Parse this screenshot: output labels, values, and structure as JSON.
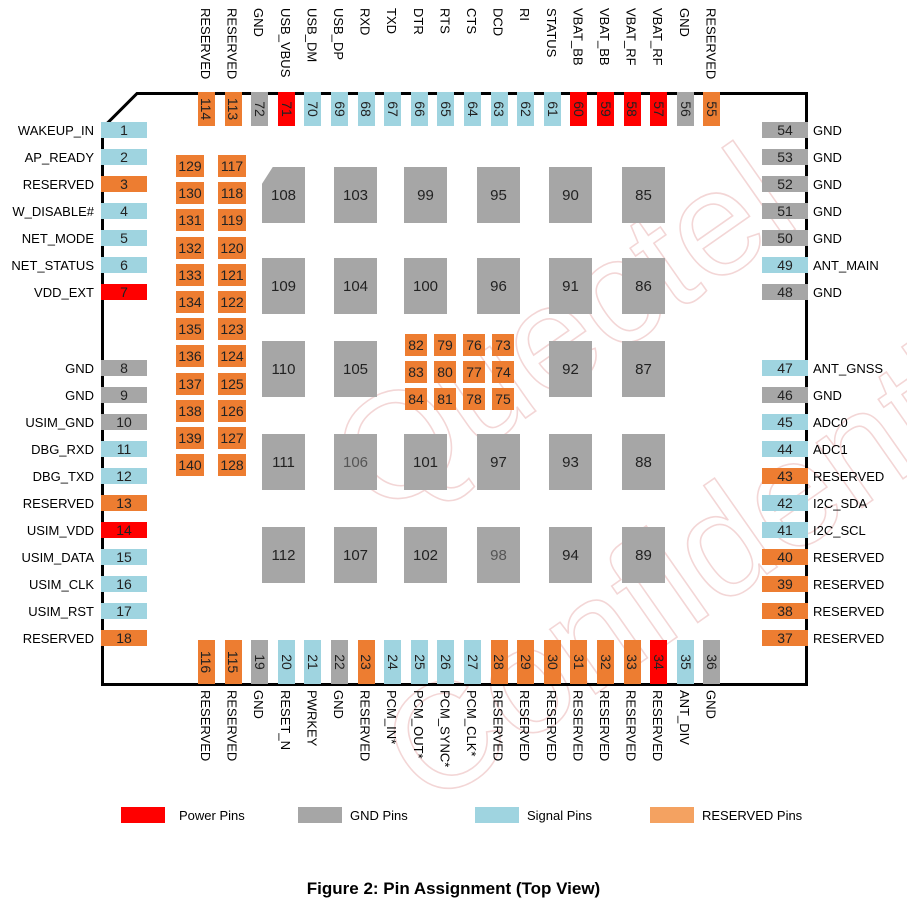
{
  "caption": "Figure 2: Pin Assignment (Top View)",
  "watermark": [
    "Quectel",
    "Confidential"
  ],
  "colors": {
    "power": "#ff0000",
    "gnd": "#a6a6a6",
    "signal": "#9fd4e0",
    "reserved": "#ed7d31",
    "legend_reserved": "#f4a261"
  },
  "legend": [
    {
      "label": "Power Pins",
      "type": "power"
    },
    {
      "label": "GND Pins",
      "type": "gnd"
    },
    {
      "label": "Signal Pins",
      "type": "signal"
    },
    {
      "label": "RESERVED Pins",
      "type": "reserved"
    }
  ],
  "pins_left": [
    {
      "num": "1",
      "label": "WAKEUP_IN",
      "type": "signal"
    },
    {
      "num": "2",
      "label": "AP_READY",
      "type": "signal"
    },
    {
      "num": "3",
      "label": "RESERVED",
      "type": "reserved"
    },
    {
      "num": "4",
      "label": "W_DISABLE#",
      "type": "signal"
    },
    {
      "num": "5",
      "label": "NET_MODE",
      "type": "signal"
    },
    {
      "num": "6",
      "label": "NET_STATUS",
      "type": "signal"
    },
    {
      "num": "7",
      "label": "VDD_EXT",
      "type": "power"
    },
    {
      "num": "8",
      "label": "GND",
      "type": "gnd"
    },
    {
      "num": "9",
      "label": "GND",
      "type": "gnd"
    },
    {
      "num": "10",
      "label": "USIM_GND",
      "type": "gnd"
    },
    {
      "num": "11",
      "label": "DBG_RXD",
      "type": "signal"
    },
    {
      "num": "12",
      "label": "DBG_TXD",
      "type": "signal"
    },
    {
      "num": "13",
      "label": "RESERVED",
      "type": "reserved"
    },
    {
      "num": "14",
      "label": "USIM_VDD",
      "type": "power"
    },
    {
      "num": "15",
      "label": "USIM_DATA",
      "type": "signal"
    },
    {
      "num": "16",
      "label": "USIM_CLK",
      "type": "signal"
    },
    {
      "num": "17",
      "label": "USIM_RST",
      "type": "signal"
    },
    {
      "num": "18",
      "label": "RESERVED",
      "type": "reserved"
    }
  ],
  "pins_right": [
    {
      "num": "54",
      "label": "GND",
      "type": "gnd"
    },
    {
      "num": "53",
      "label": "GND",
      "type": "gnd"
    },
    {
      "num": "52",
      "label": "GND",
      "type": "gnd"
    },
    {
      "num": "51",
      "label": "GND",
      "type": "gnd"
    },
    {
      "num": "50",
      "label": "GND",
      "type": "gnd"
    },
    {
      "num": "49",
      "label": "ANT_MAIN",
      "type": "signal"
    },
    {
      "num": "48",
      "label": "GND",
      "type": "gnd"
    },
    {
      "num": "47",
      "label": "ANT_GNSS",
      "type": "signal"
    },
    {
      "num": "46",
      "label": "GND",
      "type": "gnd"
    },
    {
      "num": "45",
      "label": "ADC0",
      "type": "signal"
    },
    {
      "num": "44",
      "label": "ADC1",
      "type": "signal"
    },
    {
      "num": "43",
      "label": "RESERVED",
      "type": "reserved"
    },
    {
      "num": "42",
      "label": "I2C_SDA",
      "type": "signal"
    },
    {
      "num": "41",
      "label": "I2C_SCL",
      "type": "signal"
    },
    {
      "num": "40",
      "label": "RESERVED",
      "type": "reserved"
    },
    {
      "num": "39",
      "label": "RESERVED",
      "type": "reserved"
    },
    {
      "num": "38",
      "label": "RESERVED",
      "type": "reserved"
    },
    {
      "num": "37",
      "label": "RESERVED",
      "type": "reserved"
    }
  ],
  "pins_top": [
    {
      "num": "114",
      "label": "RESERVED",
      "type": "reserved"
    },
    {
      "num": "113",
      "label": "RESERVED",
      "type": "reserved"
    },
    {
      "num": "72",
      "label": "GND",
      "type": "gnd"
    },
    {
      "num": "71",
      "label": "USB_VBUS",
      "type": "power"
    },
    {
      "num": "70",
      "label": "USB_DM",
      "type": "signal"
    },
    {
      "num": "69",
      "label": "USB_DP",
      "type": "signal"
    },
    {
      "num": "68",
      "label": "RXD",
      "type": "signal"
    },
    {
      "num": "67",
      "label": "TXD",
      "type": "signal"
    },
    {
      "num": "66",
      "label": "DTR",
      "type": "signal"
    },
    {
      "num": "65",
      "label": "RTS",
      "type": "signal"
    },
    {
      "num": "64",
      "label": "CTS",
      "type": "signal"
    },
    {
      "num": "63",
      "label": "DCD",
      "type": "signal"
    },
    {
      "num": "62",
      "label": "RI",
      "type": "signal"
    },
    {
      "num": "61",
      "label": "STATUS",
      "type": "signal"
    },
    {
      "num": "60",
      "label": "VBAT_BB",
      "type": "power"
    },
    {
      "num": "59",
      "label": "VBAT_BB",
      "type": "power"
    },
    {
      "num": "58",
      "label": "VBAT_RF",
      "type": "power"
    },
    {
      "num": "57",
      "label": "VBAT_RF",
      "type": "power"
    },
    {
      "num": "56",
      "label": "GND",
      "type": "gnd"
    },
    {
      "num": "55",
      "label": "RESERVED",
      "type": "reserved"
    }
  ],
  "pins_bottom": [
    {
      "num": "116",
      "label": "RESERVED",
      "type": "reserved"
    },
    {
      "num": "115",
      "label": "RESERVED",
      "type": "reserved"
    },
    {
      "num": "19",
      "label": "GND",
      "type": "gnd"
    },
    {
      "num": "20",
      "label": "RESET_N",
      "type": "signal"
    },
    {
      "num": "21",
      "label": "PWRKEY",
      "type": "signal"
    },
    {
      "num": "22",
      "label": "GND",
      "type": "gnd"
    },
    {
      "num": "23",
      "label": "RESERVED",
      "type": "reserved"
    },
    {
      "num": "24",
      "label": "PCM_IN*",
      "type": "signal"
    },
    {
      "num": "25",
      "label": "PCM_OUT*",
      "type": "signal"
    },
    {
      "num": "26",
      "label": "PCM_SYNC*",
      "type": "signal"
    },
    {
      "num": "27",
      "label": "PCM_CLK*",
      "type": "signal"
    },
    {
      "num": "28",
      "label": "RESERVED",
      "type": "reserved"
    },
    {
      "num": "29",
      "label": "RESERVED",
      "type": "reserved"
    },
    {
      "num": "30",
      "label": "RESERVED",
      "type": "reserved"
    },
    {
      "num": "31",
      "label": "RESERVED",
      "type": "reserved"
    },
    {
      "num": "32",
      "label": "RESERVED",
      "type": "reserved"
    },
    {
      "num": "33",
      "label": "RESERVED",
      "type": "reserved"
    },
    {
      "num": "34",
      "label": "RESERVED",
      "type": "power"
    },
    {
      "num": "35",
      "label": "ANT_DIV",
      "type": "signal"
    },
    {
      "num": "36",
      "label": "GND",
      "type": "gnd"
    }
  ],
  "inner_reserved": {
    "col_a": [
      "129",
      "130",
      "131",
      "132",
      "133",
      "134",
      "135",
      "136",
      "137",
      "138",
      "139",
      "140"
    ],
    "col_b": [
      "117",
      "118",
      "119",
      "120",
      "121",
      "122",
      "123",
      "124",
      "125",
      "126",
      "127",
      "128"
    ]
  },
  "center_reserved": [
    [
      "82",
      "79",
      "76",
      "73"
    ],
    [
      "83",
      "80",
      "77",
      "74"
    ],
    [
      "84",
      "81",
      "78",
      "75"
    ]
  ],
  "gnd_pads": [
    [
      "108",
      "103",
      "99",
      "95",
      "90",
      "85"
    ],
    [
      "109",
      "104",
      "100",
      "96",
      "91",
      "86"
    ],
    [
      "110",
      "105",
      "",
      "",
      "92",
      "87"
    ],
    [
      "111",
      "106",
      "101",
      "97",
      "93",
      "88"
    ],
    [
      "112",
      "107",
      "102",
      "98",
      "94",
      "89"
    ]
  ]
}
